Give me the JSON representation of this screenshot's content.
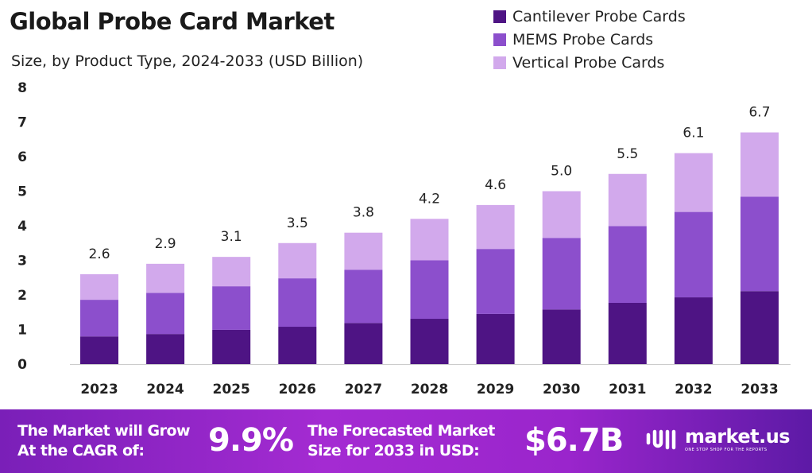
{
  "chart_data": {
    "type": "bar",
    "stacked": true,
    "title": "Global Probe Card Market",
    "subtitle": "Size, by Product Type, 2024-2033 (USD Billion)",
    "xlabel": "",
    "ylabel": "",
    "ylim": [
      0,
      8
    ],
    "yticks": [
      "0",
      "1",
      "2",
      "3",
      "4",
      "5",
      "6",
      "7",
      "8"
    ],
    "categories": [
      "2023",
      "2024",
      "2025",
      "2026",
      "2027",
      "2028",
      "2029",
      "2030",
      "2031",
      "2032",
      "2033"
    ],
    "series": [
      {
        "name": "Cantilever Probe Cards",
        "color": "#4e1484",
        "values": [
          0.8,
          0.87,
          0.99,
          1.08,
          1.19,
          1.31,
          1.45,
          1.58,
          1.77,
          1.93,
          2.11
        ]
      },
      {
        "name": "MEMS Probe Cards",
        "color": "#8c4fcc",
        "values": [
          1.06,
          1.19,
          1.26,
          1.4,
          1.54,
          1.69,
          1.88,
          2.07,
          2.22,
          2.47,
          2.73
        ]
      },
      {
        "name": "Vertical Probe Cards",
        "color": "#d2a9ec",
        "values": [
          0.74,
          0.84,
          0.85,
          1.02,
          1.07,
          1.2,
          1.27,
          1.35,
          1.51,
          1.7,
          1.86
        ]
      }
    ],
    "totals": [
      "2.6",
      "2.9",
      "3.1",
      "3.5",
      "3.8",
      "4.2",
      "4.6",
      "5.0",
      "5.5",
      "6.1",
      "6.7"
    ],
    "legend_position": "top-right",
    "grid": false
  },
  "footer": {
    "cagr_label_1": "The Market will Grow",
    "cagr_label_2": "At the CAGR of:",
    "cagr_value": "9.9%",
    "forecast_label_1": "The Forecasted Market",
    "forecast_label_2": "Size for 2033 in USD:",
    "forecast_value": "$6.7B",
    "brand": "market.us",
    "tagline": "ONE STOP SHOP FOR THE REPORTS"
  }
}
